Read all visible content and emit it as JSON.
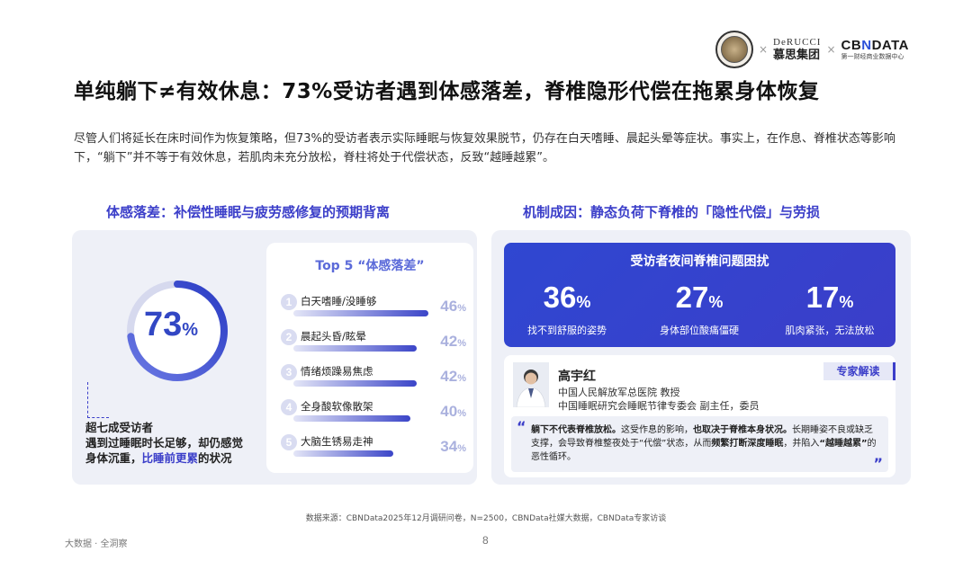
{
  "header": {
    "logo1": "",
    "brand2_en": "DeRUCCI",
    "brand2_cn": "慕思集团",
    "brand3_en_a": "CB",
    "brand3_en_b": "N",
    "brand3_en_c": "DATA",
    "brand3_cn": "第一财经商业数据中心",
    "separator": "×"
  },
  "title": "单纯躺下≠有效休息：73%受访者遇到体感落差，脊椎隐形代偿在拖累身体恢复",
  "intro": "尽管人们将延长在床时间作为恢复策略，但73%的受访者表示实际睡眠与恢复效果脱节，仍存在白天嗜睡、晨起头晕等症状。事实上，在作息、脊椎状态等影响下，“躺下”并不等于有效休息，若肌肉未充分放松，脊柱将处于代偿状态，反致“越睡越累”。",
  "left": {
    "section_title": "体感落差：补偿性睡眠与疲劳感修复的预期背离",
    "donut": {
      "value": "73",
      "unit": "%",
      "fraction": 0.73
    },
    "desc_line1": "超七成受访者",
    "desc_line2": "遇到过睡眠时长足够，却仍感觉",
    "desc_line3_a": "身体沉重，",
    "desc_line3_hl": "比睡前更累",
    "desc_line3_b": "的状况",
    "top5_title": "Top 5 “体感落差”",
    "top5": [
      {
        "num": "1",
        "label": "白天嗜睡/没睡够",
        "value": "46",
        "unit": "%",
        "v": 46
      },
      {
        "num": "2",
        "label": "晨起头昏/眩晕",
        "value": "42",
        "unit": "%",
        "v": 42
      },
      {
        "num": "3",
        "label": "情绪烦躁易焦虑",
        "value": "42",
        "unit": "%",
        "v": 42
      },
      {
        "num": "4",
        "label": "全身酸软像散架",
        "value": "40",
        "unit": "%",
        "v": 40
      },
      {
        "num": "5",
        "label": "大脑生锈易走神",
        "value": "34",
        "unit": "%",
        "v": 34
      }
    ]
  },
  "right": {
    "section_title": "机制成因：静态负荷下脊椎的「隐性代偿」与劳损",
    "card_title": "受访者夜间脊椎问题困扰",
    "stats": [
      {
        "value": "36",
        "unit": "%",
        "label": "找不到舒服的姿势"
      },
      {
        "value": "27",
        "unit": "%",
        "label": "身体部位酸痛僵硬"
      },
      {
        "value": "17",
        "unit": "%",
        "label": "肌肉紧张，无法放松"
      }
    ],
    "expert": {
      "name": "高宇红",
      "title1": "中国人民解放军总医院 教授",
      "title2": "中国睡眠研究会睡眠节律专委会 副主任，委员",
      "tag": "专家解读",
      "q_open": "“",
      "q_close": "”",
      "quote_bold1": "躺下不代表脊椎放松。",
      "quote_mid1": "这受作息的影响，",
      "quote_bold2": "也取决于脊椎本身状况。",
      "quote_mid2": "长期睡姿不良或缺乏支撑，会导致脊椎整夜处于“代偿”状态，从而",
      "quote_bold3": "频繁打断深度睡眠",
      "quote_mid3": "，并陷入",
      "quote_bold4": "“越睡越累”",
      "quote_end": "的恶性循环。"
    }
  },
  "source": "数据来源：CBNData2025年12月调研问卷，N=2500，CBNData社媒大数据，CBNData专家访谈",
  "footer_left": "大数据 · 全洞察",
  "page_number": "8",
  "colors": {
    "accent": "#3b3ec9",
    "blue_card": "#2f47d1",
    "panel": "#eef0f7"
  }
}
